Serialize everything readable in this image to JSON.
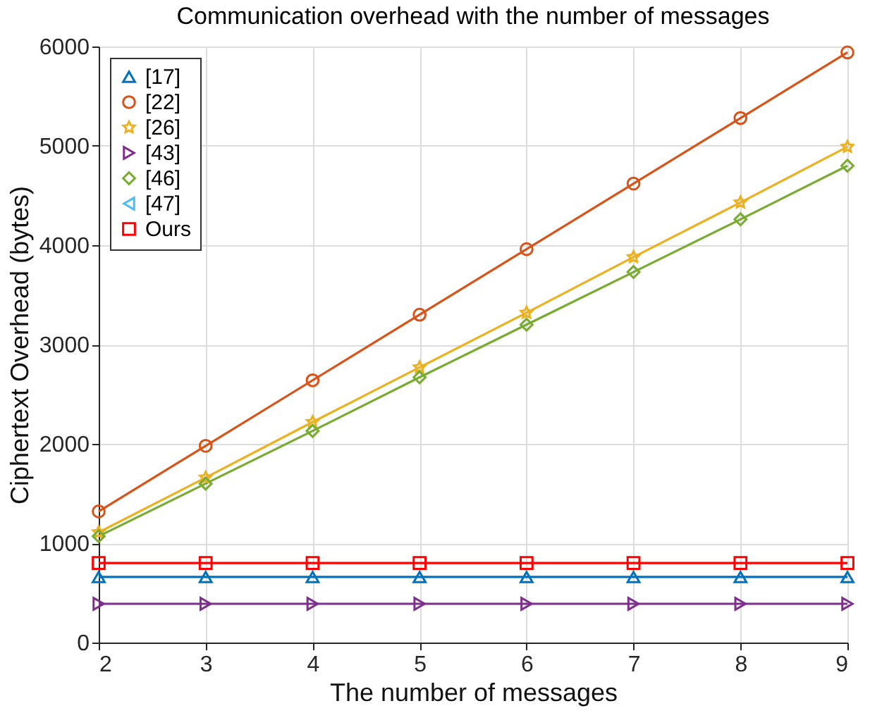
{
  "chart_data": {
    "type": "line",
    "title": "Communication overhead with the number of messages",
    "xlabel": "The number of messages",
    "ylabel": "Ciphertext Overhead (bytes)",
    "x": [
      2,
      3,
      4,
      5,
      6,
      7,
      8,
      9
    ],
    "xlim": [
      2,
      9
    ],
    "xticks": [
      2,
      3,
      4,
      5,
      6,
      7,
      8,
      9
    ],
    "ylim": [
      0,
      6000
    ],
    "yticks": [
      0,
      1000,
      2000,
      3000,
      4000,
      5000,
      6000
    ],
    "grid": true,
    "legend": "top left",
    "series": [
      {
        "name": "[17]",
        "color": "#0072bd",
        "marker": "triangle",
        "values": [
          660,
          660,
          660,
          660,
          660,
          660,
          660,
          660
        ]
      },
      {
        "name": "[22]",
        "color": "#d95319",
        "marker": "circle",
        "values": [
          1320,
          1980,
          2640,
          3300,
          3960,
          4620,
          5280,
          5940
        ]
      },
      {
        "name": "[26]",
        "color": "#edb120",
        "marker": "star",
        "values": [
          1110,
          1660,
          2220,
          2770,
          3320,
          3880,
          4430,
          4990
        ]
      },
      {
        "name": "[43]",
        "color": "#7e2f8e",
        "marker": "triangle-right",
        "values": [
          390,
          390,
          390,
          390,
          390,
          390,
          390,
          390
        ]
      },
      {
        "name": "[46]",
        "color": "#77ac30",
        "marker": "diamond",
        "values": [
          1070,
          1600,
          2130,
          2670,
          3200,
          3730,
          4260,
          4800
        ]
      },
      {
        "name": "[47]",
        "color": "#4dbeee",
        "marker": "triangle-left",
        "values": [
          null,
          null,
          null,
          null,
          null,
          null,
          null,
          null
        ]
      },
      {
        "name": "Ours",
        "color": "#ff0000",
        "marker": "square",
        "values": [
          800,
          800,
          800,
          800,
          800,
          800,
          800,
          800
        ]
      }
    ]
  }
}
